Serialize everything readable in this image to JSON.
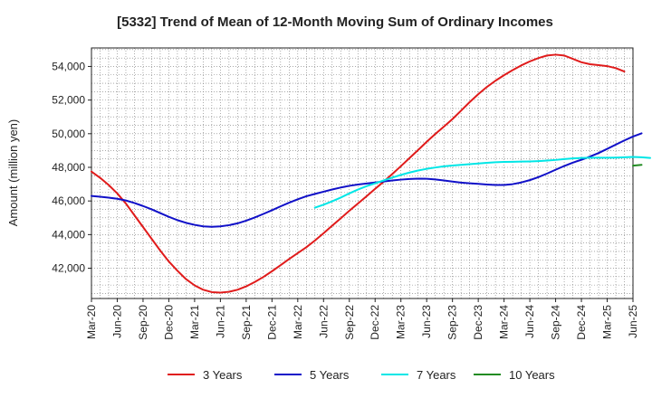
{
  "chart_data": {
    "type": "line",
    "title": "[5332]  Trend of Mean of 12-Month Moving Sum of Ordinary Incomes",
    "xlabel": "",
    "ylabel": "Amount (million yen)",
    "ylim": [
      40200,
      55100
    ],
    "y_ticks": [
      42000,
      44000,
      46000,
      48000,
      50000,
      52000,
      54000
    ],
    "y_tick_labels": [
      "42,000",
      "44,000",
      "46,000",
      "48,000",
      "50,000",
      "52,000",
      "54,000"
    ],
    "x_tick_labels": [
      "Mar-20",
      "Jun-20",
      "Sep-20",
      "Dec-20",
      "Mar-21",
      "Jun-21",
      "Sep-21",
      "Dec-21",
      "Mar-22",
      "Jun-22",
      "Sep-22",
      "Dec-22",
      "Mar-23",
      "Jun-23",
      "Sep-23",
      "Dec-23",
      "Mar-24",
      "Jun-24",
      "Sep-24",
      "Dec-24",
      "Mar-25",
      "Jun-25"
    ],
    "grid": true,
    "legend_position": "bottom",
    "series": [
      {
        "name": "3 Years",
        "color": "#e01b1b",
        "start_index": 0,
        "values": [
          47750,
          47380,
          46950,
          46450,
          45850,
          45150,
          44450,
          43750,
          43050,
          42400,
          41850,
          41350,
          40980,
          40720,
          40580,
          40550,
          40600,
          40720,
          40920,
          41180,
          41480,
          41820,
          42180,
          42550,
          42900,
          43250,
          43650,
          44080,
          44530,
          44970,
          45420,
          45850,
          46280,
          46720,
          47150,
          47600,
          48070,
          48550,
          49030,
          49520,
          49980,
          50420,
          50870,
          51370,
          51880,
          52350,
          52780,
          53150,
          53480,
          53780,
          54060,
          54300,
          54500,
          54650,
          54700,
          54650,
          54450,
          54250,
          54130,
          54080,
          54020,
          53900,
          53700
        ]
      },
      {
        "name": "5 Years",
        "color": "#1010c8",
        "start_index": 0,
        "values": [
          46300,
          46250,
          46200,
          46130,
          46030,
          45880,
          45700,
          45500,
          45280,
          45060,
          44860,
          44700,
          44580,
          44490,
          44460,
          44490,
          44560,
          44670,
          44830,
          45020,
          45230,
          45450,
          45680,
          45900,
          46100,
          46280,
          46420,
          46550,
          46680,
          46800,
          46900,
          46980,
          47040,
          47100,
          47160,
          47220,
          47270,
          47310,
          47330,
          47320,
          47280,
          47220,
          47150,
          47090,
          47050,
          47020,
          46980,
          46950,
          46950,
          47000,
          47100,
          47240,
          47420,
          47630,
          47860,
          48080,
          48280,
          48450,
          48640,
          48850,
          49100,
          49350,
          49600,
          49830,
          50020
        ]
      },
      {
        "name": "7 Years",
        "color": "#00e6e6",
        "start_index": 26,
        "values": [
          45600,
          45780,
          45980,
          46200,
          46450,
          46680,
          46880,
          47050,
          47220,
          47390,
          47550,
          47690,
          47810,
          47910,
          47990,
          48060,
          48110,
          48150,
          48190,
          48230,
          48270,
          48300,
          48320,
          48330,
          48340,
          48350,
          48370,
          48400,
          48440,
          48490,
          48530,
          48560,
          48570,
          48570,
          48570,
          48580,
          48600,
          48620,
          48600,
          48560
        ]
      },
      {
        "name": "10 Years",
        "color": "#228b22",
        "start_index": 63,
        "values": [
          48100,
          48150
        ]
      }
    ]
  }
}
